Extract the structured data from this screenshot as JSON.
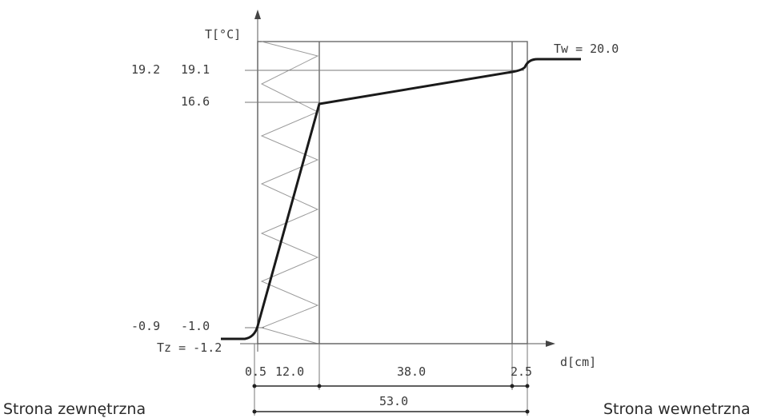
{
  "axes": {
    "y_label": "T[°C]",
    "x_label": "d[cm]"
  },
  "temperatures": {
    "left_top_a": "19.2",
    "left_top_b": "19.1",
    "mid": "16.6",
    "left_bottom_a": "-0.9",
    "left_bottom_b": "-1.0",
    "tz_label": "Tz = -1.2",
    "tw_label": "Tw = 20.0"
  },
  "layers": {
    "l1": "0.5",
    "l2": "12.0",
    "l3": "38.0",
    "l4": "2.5",
    "total": "53.0"
  },
  "sides": {
    "outside": "Strona zewnętrzna",
    "inside": "Strona wewnetrzna"
  },
  "colors": {
    "line": "#1a1a1a",
    "wall": "#6a6a6a",
    "insulation": "#9a9a9a"
  }
}
